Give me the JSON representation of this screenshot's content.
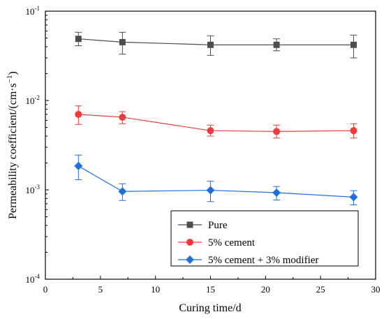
{
  "chart_data": {
    "type": "line",
    "title": "",
    "xlabel": "Curing time/d",
    "ylabel": "Permeability coefficient/(cm·s",
    "ylabel_sup": "−1",
    "ylabel_close": ")",
    "xlim": [
      0,
      30
    ],
    "ylim": [
      0.0001,
      0.1
    ],
    "yscale": "log",
    "x_ticks": [
      0,
      5,
      10,
      15,
      20,
      25,
      30
    ],
    "x_tick_labels": [
      "0",
      "5",
      "10",
      "15",
      "20",
      "25",
      "30"
    ],
    "y_ticks": [
      {
        "value": 0.1,
        "base": "10",
        "exp": "-1"
      },
      {
        "value": 0.01,
        "base": "10",
        "exp": "-2"
      },
      {
        "value": 0.001,
        "base": "10",
        "exp": "-3"
      },
      {
        "value": 0.0001,
        "base": "10",
        "exp": "-4"
      }
    ],
    "grid": false,
    "legend_position": "bottom-right",
    "x": [
      3,
      7,
      15,
      21,
      28
    ],
    "series": [
      {
        "name": "Pure",
        "color": "#4d4d4d",
        "marker": "square",
        "values": [
          0.049,
          0.045,
          0.042,
          0.042,
          0.042
        ],
        "err_low": [
          0.041,
          0.033,
          0.032,
          0.036,
          0.03
        ],
        "err_high": [
          0.058,
          0.058,
          0.053,
          0.049,
          0.054
        ]
      },
      {
        "name": "5% cement",
        "color": "#ef3b3b",
        "marker": "circle",
        "values": [
          0.007,
          0.0065,
          0.0046,
          0.0045,
          0.0046
        ],
        "err_low": [
          0.0054,
          0.0055,
          0.004,
          0.0038,
          0.0038
        ],
        "err_high": [
          0.0087,
          0.0075,
          0.0053,
          0.0053,
          0.0055
        ]
      },
      {
        "name": "5% cement + 3% modifier",
        "color": "#1f6fe0",
        "marker": "diamond",
        "values": [
          0.00185,
          0.00096,
          0.00099,
          0.00093,
          0.00083
        ],
        "err_low": [
          0.0013,
          0.00076,
          0.00074,
          0.00077,
          0.00068
        ],
        "err_high": [
          0.00245,
          0.00117,
          0.00125,
          0.00109,
          0.00098
        ]
      }
    ]
  }
}
